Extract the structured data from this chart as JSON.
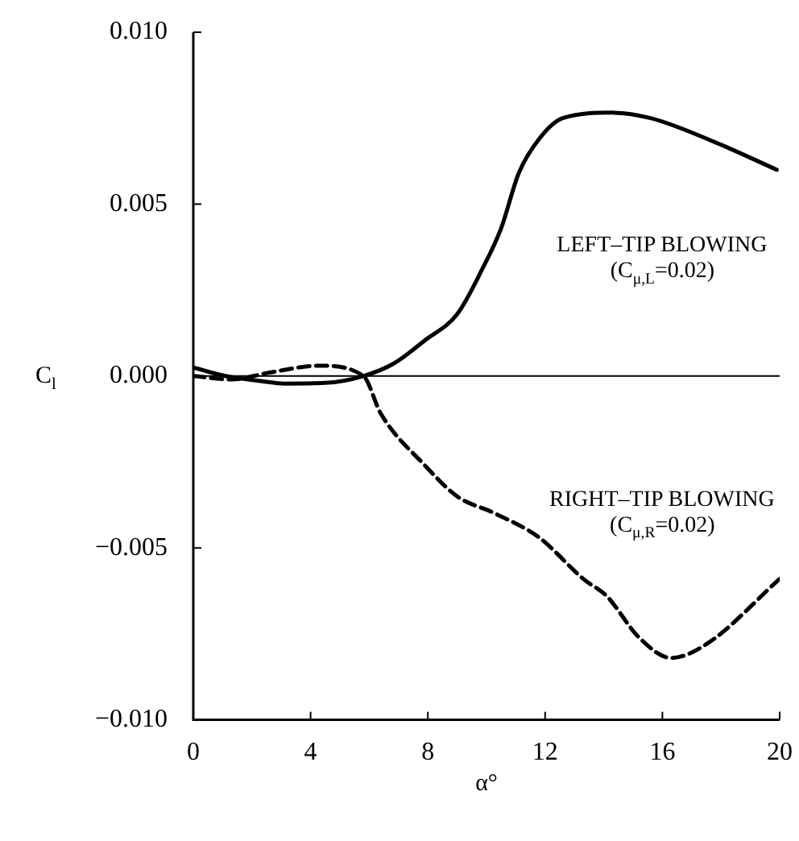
{
  "chart_data": {
    "type": "line",
    "xlabel": "α°",
    "ylabel": "C$_{l}$",
    "xlim": [
      0,
      20
    ],
    "xticks": [
      0,
      4,
      8,
      12,
      16,
      20
    ],
    "ylim": [
      -0.01,
      0.01
    ],
    "yticks": [
      {
        "value": -0.01,
        "label": "−0.010"
      },
      {
        "value": -0.005,
        "label": "−0.005"
      },
      {
        "value": 0,
        "label": "0.000"
      },
      {
        "value": 0.005,
        "label": "0.005"
      },
      {
        "value": 0.01,
        "label": "0.010"
      }
    ],
    "grid": false,
    "legend": false,
    "marker": "none",
    "ref_lines": [
      {
        "axis": "y",
        "value": 0,
        "color": "#000000"
      }
    ],
    "series": [
      {
        "name": "LEFT–TIP BLOWING\n(C$_{μ,L}$=0.02)",
        "color": "#000000",
        "line_style": "solid",
        "x": [
          0,
          1.1,
          2.35,
          3.1,
          4.5,
          5.8,
          6.85,
          7.9,
          9.0,
          9.85,
          10.5,
          11.1,
          11.8,
          12.6,
          14.3,
          15.6,
          17.8,
          19.9
        ],
        "values": [
          0.00025,
          0,
          -0.00015,
          -0.00022,
          -0.0002,
          0,
          0.00037,
          0.00104,
          0.0018,
          0.0031,
          0.0043,
          0.0059,
          0.0069,
          0.0075,
          0.00766,
          0.0075,
          0.0068,
          0.006
        ]
      },
      {
        "name": "RIGHT–TIP BLOWING\n(C$_{μ,R}$=0.02)",
        "color": "#000000",
        "line_style": "dashed",
        "x": [
          0,
          1.3,
          2.6,
          4.3,
          5.8,
          6.4,
          7.9,
          9.0,
          10.3,
          11.8,
          13.3,
          14.1,
          15.2,
          16.3,
          17.5,
          20
        ],
        "values": [
          0,
          -0.0001,
          0.0001,
          0.0003,
          0,
          -0.0011,
          -0.0026,
          -0.0035,
          -0.004,
          -0.0047,
          -0.0059,
          -0.0064,
          -0.0076,
          -0.0082,
          -0.0078,
          -0.0059
        ]
      }
    ]
  }
}
